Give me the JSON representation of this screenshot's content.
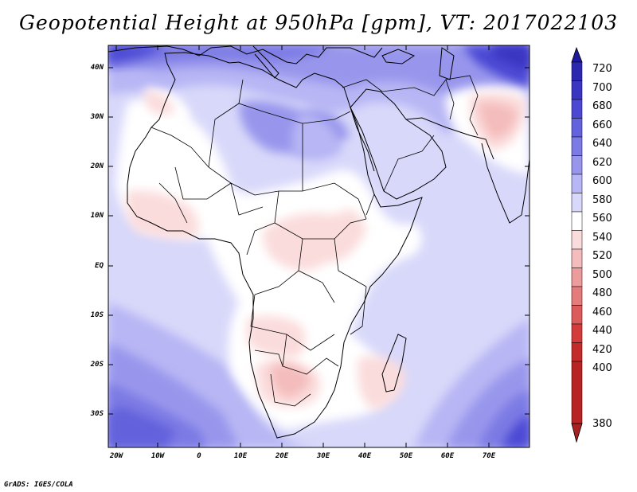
{
  "title": "Geopotential Height at 950hPa [gpm], VT: 2017022103",
  "credit": "GrADS: IGES/COLA",
  "variable": "Geopotential Height",
  "level": "950hPa",
  "units": "gpm",
  "valid_time": "2017022103",
  "lat_labels": [
    "40N",
    "30N",
    "20N",
    "10N",
    "EQ",
    "10S",
    "20S",
    "30S"
  ],
  "lon_labels": [
    "20W",
    "10W",
    "0",
    "10E",
    "20E",
    "30E",
    "40E",
    "50E",
    "60E",
    "70E"
  ],
  "colorbar": {
    "levels": [
      "720",
      "700",
      "680",
      "660",
      "640",
      "620",
      "600",
      "580",
      "560",
      "540",
      "520",
      "500",
      "480",
      "460",
      "440",
      "420",
      "400",
      "380"
    ],
    "colors": [
      "#1e1a9e",
      "#2c28b0",
      "#3a36c2",
      "#4c48d4",
      "#6462dc",
      "#7c7ae4",
      "#9896ec",
      "#b8b6f4",
      "#d8d8fa",
      "#ffffff",
      "#fbdcdc",
      "#f4bcbc",
      "#ec9c9c",
      "#e47c7c",
      "#dc5c5c",
      "#d43c3c",
      "#c42c2c",
      "#a82020"
    ]
  },
  "colors": {
    "ocean_base": "#d8d8fa",
    "coast": "#000000"
  }
}
